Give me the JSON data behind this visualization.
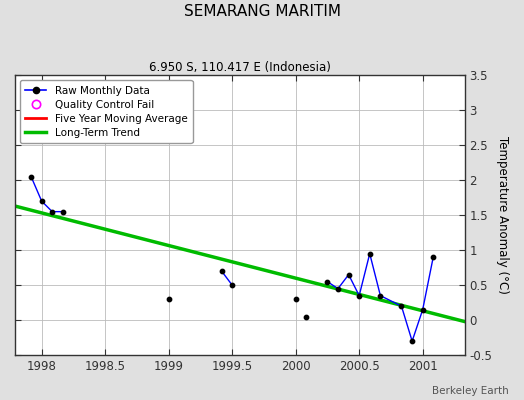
{
  "title": "SEMARANG MARITIM",
  "subtitle": "6.950 S, 110.417 E (Indonesia)",
  "ylabel": "Temperature Anomaly (°C)",
  "watermark": "Berkeley Earth",
  "xlim": [
    1997.79,
    2001.33
  ],
  "ylim": [
    -0.5,
    3.5
  ],
  "yticks": [
    -0.5,
    0.0,
    0.5,
    1.0,
    1.5,
    2.0,
    2.5,
    3.0,
    3.5
  ],
  "ytick_labels": [
    "-0.5",
    "0",
    "0.5",
    "1",
    "1.5",
    "2",
    "2.5",
    "3",
    "3.5"
  ],
  "xticks": [
    1998,
    1998.5,
    1999,
    1999.5,
    2000,
    2000.5,
    2001
  ],
  "xtick_labels": [
    "1998",
    "1998.5",
    "1999",
    "1999.5",
    "2000",
    "2000.5",
    "2001"
  ],
  "raw_x": [
    1997.917,
    1998.0,
    1998.083,
    1998.167,
    1999.0,
    1999.417,
    1999.5,
    2000.0,
    2000.083,
    2000.25,
    2000.333,
    2000.417,
    2000.5,
    2000.583,
    2000.667,
    2000.833,
    2000.917,
    2001.0,
    2001.083
  ],
  "raw_y": [
    2.05,
    1.7,
    1.55,
    1.55,
    0.3,
    0.7,
    0.5,
    0.3,
    0.05,
    0.55,
    0.45,
    0.65,
    0.35,
    0.95,
    0.35,
    0.2,
    -0.3,
    0.15,
    0.9
  ],
  "connected_segments": [
    {
      "x": [
        1997.917,
        1998.0,
        1998.083,
        1998.167
      ],
      "y": [
        2.05,
        1.7,
        1.55,
        1.55
      ]
    },
    {
      "x": [
        1999.417,
        1999.5
      ],
      "y": [
        0.7,
        0.5
      ]
    },
    {
      "x": [
        2000.25,
        2000.333,
        2000.417,
        2000.5,
        2000.583,
        2000.667,
        2000.833,
        2000.917,
        2001.0,
        2001.083
      ],
      "y": [
        0.55,
        0.45,
        0.65,
        0.35,
        0.95,
        0.35,
        0.2,
        -0.3,
        0.15,
        0.9
      ]
    }
  ],
  "trend_x": [
    1997.79,
    2001.33
  ],
  "trend_y": [
    1.63,
    -0.02
  ],
  "raw_color": "#0000ff",
  "trend_color": "#00bb00",
  "ma_color": "#ff0000",
  "dot_color": "#000000",
  "bg_color": "#e0e0e0",
  "plot_bg": "#ffffff"
}
